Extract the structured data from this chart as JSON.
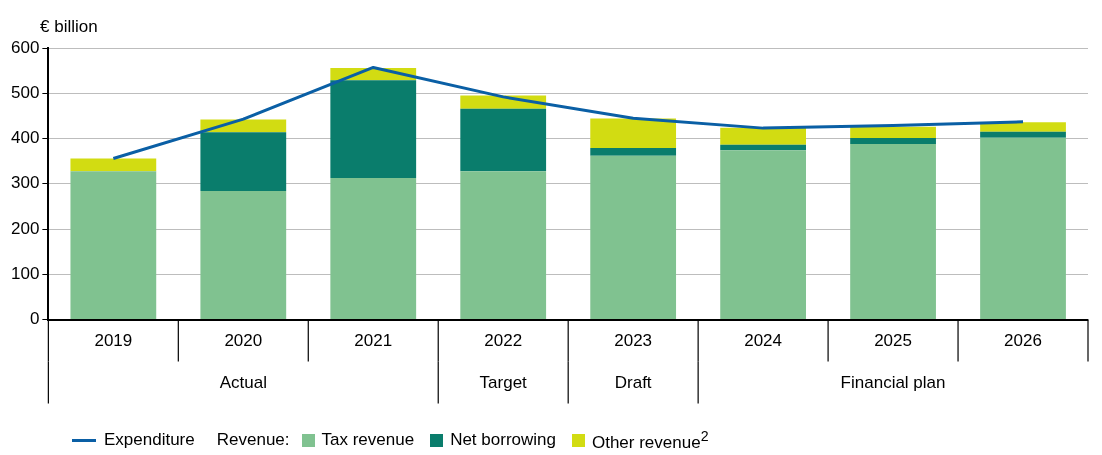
{
  "chart_data": {
    "type": "bar",
    "stacked": true,
    "ylabel": "€ billion",
    "legend_title": "Revenue:",
    "categories": [
      "2019",
      "2020",
      "2021",
      "2022",
      "2023",
      "2024",
      "2025",
      "2026"
    ],
    "series": [
      {
        "name": "Expenditure",
        "type": "line",
        "color": "#0a5fa5",
        "values": [
          356,
          443,
          557,
          492,
          445,
          423,
          429,
          437
        ]
      },
      {
        "name": "Tax revenue",
        "color": "#80c290",
        "values": [
          328,
          284,
          313,
          328,
          362,
          374,
          388,
          402
        ]
      },
      {
        "name": "Net borrowing",
        "color": "#0a7d6c",
        "values": [
          null,
          130,
          216,
          138,
          17,
          12,
          13,
          13
        ]
      },
      {
        "name": "Other revenue$^{2}$",
        "color": "#d2dc12",
        "values": [
          28,
          28,
          27,
          29,
          65,
          38,
          25,
          21
        ]
      }
    ],
    "ylim": [
      0,
      600
    ],
    "yticks": [
      0,
      100,
      200,
      300,
      400,
      500,
      600
    ],
    "grid": "y",
    "legend": "bottom",
    "marker": "none",
    "line_style": "solid",
    "annotations": [
      "Actual",
      "Target",
      "Draft",
      "Financial plan"
    ]
  }
}
